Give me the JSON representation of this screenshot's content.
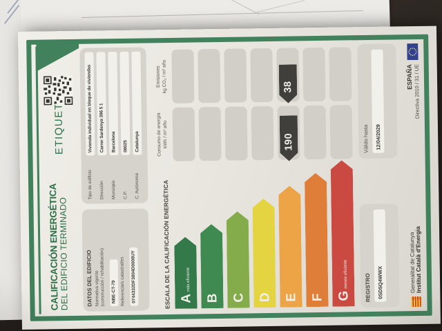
{
  "scene": {
    "table_color": "#2b2521"
  },
  "certificate": {
    "title_line1": "CALIFICACIÓN ENERGÉTICA",
    "title_line2": "DEL EDIFICIO TERMINADO",
    "etiqueta_label": "ETIQUETA",
    "datos": {
      "heading": "DATOS DEL EDIFICIO",
      "normativa_label": "Normativa vigente",
      "normativa_sublabel": "(construcción / rehabilitación)",
      "normativa_value": "NBE-CT-79",
      "catastral_label": "Referencia/s catastral/es",
      "catastral_value": "0744332DF3804D0008UY"
    },
    "building": [
      {
        "label": "Tipo de edificio",
        "value": "Vivienda individual en bloque de viviendas"
      },
      {
        "label": "Dirección",
        "value": "Carrer Sardenya 396 5 1"
      },
      {
        "label": "Municipio",
        "value": "Barcelona"
      },
      {
        "label": "C.P.",
        "value": "08025"
      },
      {
        "label": "C. Autónoma",
        "value": "Catalunya"
      }
    ],
    "scale_heading": "ESCALA DE LA CALIFICACIÓN ENERGÉTICA",
    "headers": {
      "consumo_line1": "Consumo de energía",
      "consumo_line2": "kWh / m² año",
      "emisiones_line1": "Emisiones",
      "emisiones_line2": "kg CO₂ / m² año"
    },
    "ratings": [
      {
        "letter": "A",
        "suffix": "más eficiente",
        "color": "#34794a"
      },
      {
        "letter": "B",
        "suffix": "",
        "color": "#3f8a51"
      },
      {
        "letter": "C",
        "suffix": "",
        "color": "#84ac4b"
      },
      {
        "letter": "D",
        "suffix": "",
        "color": "#e5d441"
      },
      {
        "letter": "E",
        "suffix": "",
        "color": "#eca446"
      },
      {
        "letter": "F",
        "suffix": "",
        "color": "#de7e39"
      },
      {
        "letter": "G",
        "suffix": "menos eficiente",
        "color": "#ca4a41"
      }
    ],
    "rating_row_letter": "E",
    "consumption_value": "190",
    "emissions_value": "38",
    "registro": {
      "label": "REGISTRO",
      "value": "0SD5Q4WWX"
    },
    "valido": {
      "label": "Válido hasta",
      "value": "12/04/2029"
    },
    "footer": {
      "org_line1": "Generalitat de Catalunya",
      "org_line2": "Institut Català d'Energia",
      "country": "ESPAÑA",
      "directive": "Directiva 2010 / 31 / UE"
    },
    "colors": {
      "border_green": "#41815c",
      "title_green": "#2b7047",
      "value_marker": "#403f3b",
      "cell_grey": "#d2cfc9",
      "box_grey": "#d6d3cd",
      "paper": "#e9e6e0"
    }
  }
}
